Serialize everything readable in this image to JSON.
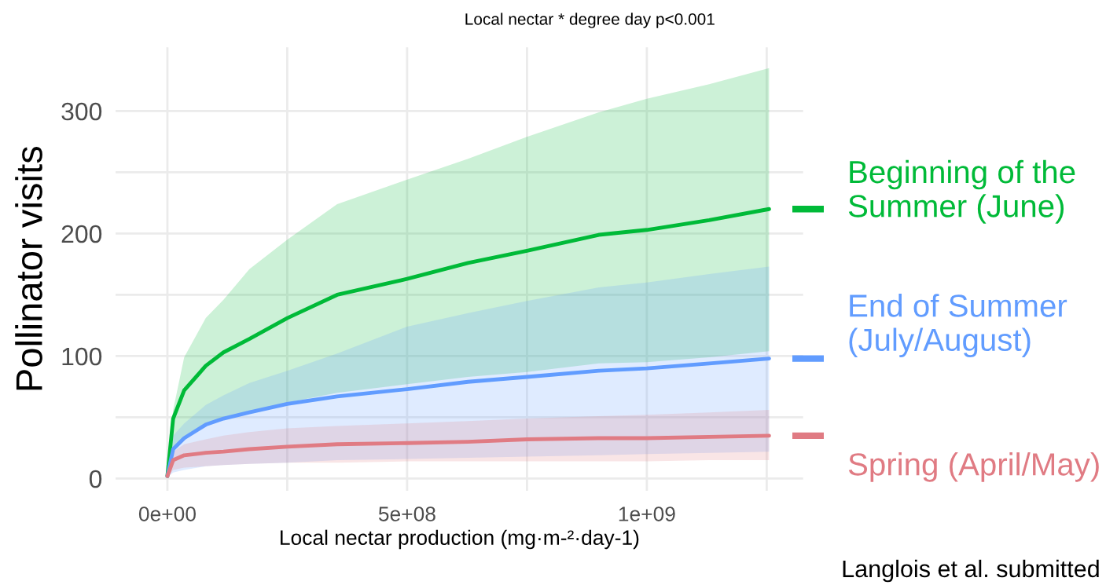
{
  "chart_data": {
    "type": "line",
    "title": "Local nectar * degree day p<0.001",
    "xlabel": "Local nectar production (mg·m-²·day-1)",
    "ylabel": "Pollinator visits",
    "x": [
      0,
      12000000,
      35000000,
      80000000,
      117000000,
      171000000,
      250000000,
      354000000,
      500000000,
      627000000,
      750000000,
      900000000,
      1000000000,
      1130000000,
      1255000000
    ],
    "series": [
      {
        "name": "Beginning of the Summer (June)",
        "color": "#00ba38",
        "values": [
          2,
          49,
          72,
          92,
          103,
          114,
          131,
          150,
          163,
          176,
          186,
          199,
          203,
          211,
          220
        ],
        "lower": [
          2,
          23,
          34,
          43,
          48,
          54,
          62,
          70,
          77,
          83,
          87,
          94,
          95,
          99,
          104
        ],
        "upper": [
          2,
          56,
          99,
          131,
          146,
          171,
          195,
          224,
          244,
          261,
          279,
          299,
          310,
          322,
          335
        ]
      },
      {
        "name": "End of Summer (July/August)",
        "color": "#619cff",
        "values": [
          2,
          24,
          33,
          44,
          49,
          54,
          61,
          67,
          73,
          79,
          83,
          88,
          90,
          94,
          98
        ],
        "lower": [
          1,
          5,
          7,
          10,
          11,
          12,
          13,
          15,
          16,
          17,
          18,
          19,
          20,
          21,
          22
        ],
        "upper": [
          2,
          35,
          45,
          60,
          68,
          78,
          88,
          102,
          124,
          135,
          145,
          156,
          160,
          167,
          173
        ]
      },
      {
        "name": "Spring (April/May)",
        "color": "#e07b83",
        "values": [
          2,
          15,
          19,
          21,
          22,
          24,
          26,
          28,
          29,
          30,
          32,
          33,
          33,
          34,
          35
        ],
        "lower": [
          1,
          7,
          9,
          10,
          11,
          12,
          13,
          13,
          14,
          14,
          14,
          14,
          14,
          15,
          15
        ],
        "upper": [
          2,
          22,
          28,
          32,
          35,
          38,
          41,
          43,
          45,
          47,
          49,
          51,
          52,
          54,
          56
        ]
      }
    ],
    "xlim": [
      -108000000,
      1326000000
    ],
    "ylim": [
      -10,
      352
    ],
    "xticks": [
      {
        "value": 0,
        "label": "0e+00"
      },
      {
        "value": 250000000,
        "label": null
      },
      {
        "value": 500000000,
        "label": "5e+08"
      },
      {
        "value": 750000000,
        "label": null
      },
      {
        "value": 1000000000,
        "label": "1e+09"
      },
      {
        "value": 1250000000,
        "label": null
      }
    ],
    "yticks": [
      0,
      {
        "value": 50,
        "label": null
      },
      100,
      {
        "value": 150,
        "label": null
      },
      200,
      {
        "value": 250,
        "label": null
      },
      300
    ],
    "grid": true,
    "annotations": [
      "Langlois et al. submitted"
    ]
  }
}
